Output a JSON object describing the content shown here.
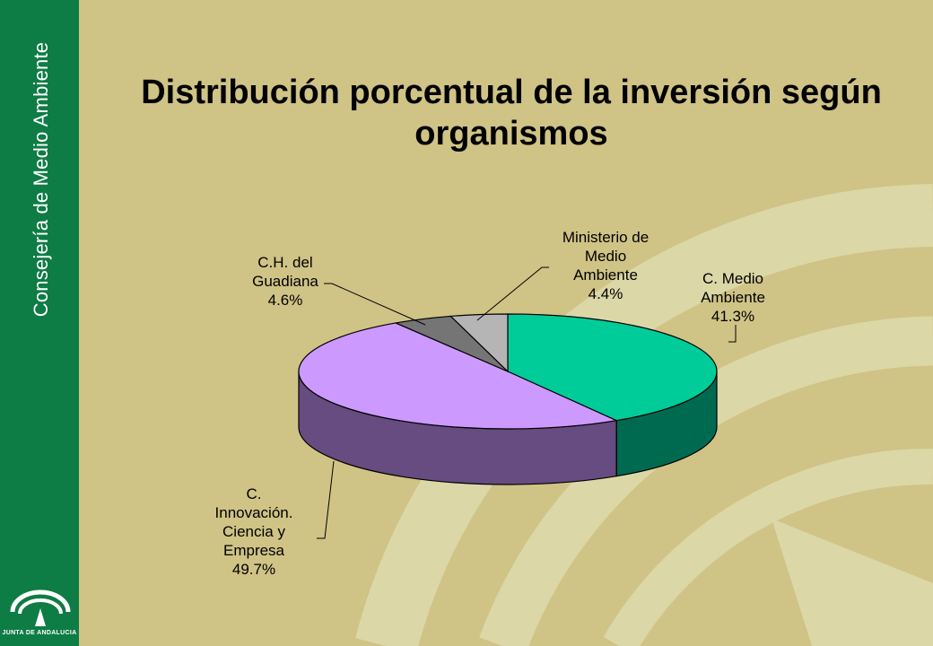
{
  "sidebar": {
    "vertical_text": "Consejería de Medio Ambiente",
    "logo_text": "JUNTA DE ANDALUCIA"
  },
  "colors": {
    "background": "#cfc386",
    "sidebar": "#0e7c45",
    "decoration": "#dcd7a6"
  },
  "chart_data": {
    "type": "pie",
    "three_d": true,
    "title": "Distribución porcentual de la inversión según organismos",
    "slices": [
      {
        "label": "C. Medio Ambiente",
        "value": 41.3,
        "label_text": "41.3%",
        "color": "#00cc99",
        "side_color": "#006a50"
      },
      {
        "label": "C. Innovación. Ciencia y Empresa",
        "value": 49.7,
        "label_text": "49.7%",
        "color": "#cc99ff",
        "side_color": "#664c80"
      },
      {
        "label": "C.H. del Guadiana",
        "value": 4.6,
        "label_text": "4.6%",
        "color": "#757575",
        "side_color": "#3c3c3c"
      },
      {
        "label": "Ministerio de Medio Ambiente",
        "value": 4.4,
        "label_text": "4.4%",
        "color": "#b5b5b5",
        "side_color": "#5c5c5c"
      }
    ],
    "data_labels": [
      {
        "lines": [
          "C. Medio",
          "Ambiente",
          "41.3%"
        ]
      },
      {
        "lines": [
          "C.",
          "Innovación.",
          "Ciencia y",
          "Empresa",
          "49.7%"
        ]
      },
      {
        "lines": [
          "C.H. del",
          "Guadiana",
          "4.6%"
        ]
      },
      {
        "lines": [
          "Ministerio de",
          "Medio",
          "Ambiente",
          "4.4%"
        ]
      }
    ]
  }
}
